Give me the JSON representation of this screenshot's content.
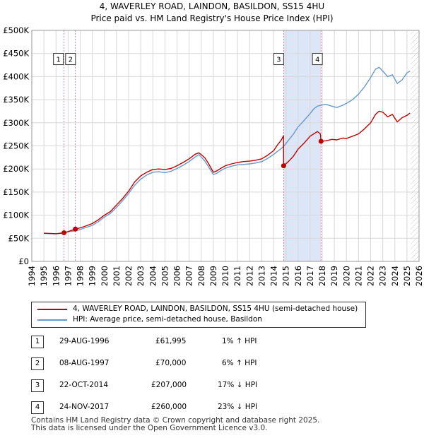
{
  "title": {
    "line1": "4, WAVERLEY ROAD, LAINDON, BASILDON, SS15 4HU",
    "line2": "Price paid vs. HM Land Registry's House Price Index (HPI)"
  },
  "colors": {
    "price_line": "#c00000",
    "hpi_line": "#6699cc",
    "shade": "#dde6f7",
    "grid": "#d8d8d8",
    "vline": "#e0607a"
  },
  "chart_data": {
    "type": "line",
    "title": "Price paid vs. HM Land Registry's House Price Index (HPI)",
    "xlabel": "",
    "ylabel": "",
    "xlim": [
      1994,
      2026
    ],
    "ylim": [
      0,
      500000
    ],
    "y_ticks": [
      0,
      50000,
      100000,
      150000,
      200000,
      250000,
      300000,
      350000,
      400000,
      450000,
      500000
    ],
    "y_tick_labels": [
      "£0",
      "£50K",
      "£100K",
      "£150K",
      "£200K",
      "£250K",
      "£300K",
      "£350K",
      "£400K",
      "£450K",
      "£500K"
    ],
    "x_ticks": [
      "1994",
      "1995",
      "1996",
      "1997",
      "1998",
      "1999",
      "2000",
      "2001",
      "2002",
      "2003",
      "2004",
      "2005",
      "2006",
      "2007",
      "2008",
      "2009",
      "2010",
      "2011",
      "2012",
      "2013",
      "2014",
      "2015",
      "2016",
      "2017",
      "2018",
      "2019",
      "2020",
      "2021",
      "2022",
      "2023",
      "2024",
      "2025",
      "2026"
    ],
    "grid": true,
    "shaded_range": [
      2014.81,
      2017.9
    ],
    "series": [
      {
        "name": "4, WAVERLEY ROAD, LAINDON, BASILDON, SS15 4HU (semi-detached house)",
        "x": [
          1995.0,
          1995.5,
          1996.0,
          1996.66,
          1997.0,
          1997.6,
          1998.0,
          1998.5,
          1999.0,
          1999.5,
          2000.0,
          2000.5,
          2001.0,
          2001.5,
          2002.0,
          2002.5,
          2003.0,
          2003.5,
          2004.0,
          2004.5,
          2005.0,
          2005.5,
          2006.0,
          2006.5,
          2007.0,
          2007.5,
          2007.8,
          2008.0,
          2008.3,
          2008.6,
          2009.0,
          2009.3,
          2009.6,
          2010.0,
          2010.5,
          2011.0,
          2011.5,
          2012.0,
          2012.5,
          2013.0,
          2013.5,
          2014.0,
          2014.3,
          2014.6,
          2014.8,
          2014.81,
          2015.2,
          2015.6,
          2016.0,
          2016.5,
          2017.0,
          2017.3,
          2017.6,
          2017.85,
          2017.9,
          2018.3,
          2018.8,
          2019.2,
          2019.7,
          2020.0,
          2020.5,
          2021.0,
          2021.5,
          2022.0,
          2022.4,
          2022.7,
          2023.0,
          2023.4,
          2023.8,
          2024.2,
          2024.6,
          2025.0,
          2025.25
        ],
        "values": [
          61000,
          60500,
          60000,
          61995,
          64500,
          70000,
          72500,
          77000,
          82000,
          90000,
          100000,
          108000,
          122000,
          136000,
          152000,
          172000,
          185000,
          193000,
          199000,
          200000,
          199000,
          201000,
          207000,
          214000,
          222000,
          232000,
          235000,
          231000,
          224000,
          212000,
          193000,
          196000,
          201000,
          207000,
          211000,
          214000,
          216000,
          217000,
          219000,
          222000,
          230000,
          240000,
          252000,
          262000,
          272000,
          207000,
          216000,
          227000,
          243000,
          256000,
          271000,
          276000,
          281000,
          276000,
          260000,
          261000,
          264000,
          263000,
          267000,
          266000,
          271000,
          276000,
          287000,
          300000,
          318000,
          325000,
          323000,
          313000,
          318000,
          302000,
          311000,
          316000,
          321000
        ],
        "color": "#c00000"
      },
      {
        "name": "HPI: Average price, semi-detached house, Basildon",
        "x": [
          1995.0,
          1995.5,
          1996.0,
          1996.66,
          1997.0,
          1997.6,
          1998.0,
          1998.5,
          1999.0,
          1999.5,
          2000.0,
          2000.5,
          2001.0,
          2001.5,
          2002.0,
          2002.5,
          2003.0,
          2003.5,
          2004.0,
          2004.5,
          2005.0,
          2005.5,
          2006.0,
          2006.5,
          2007.0,
          2007.5,
          2007.8,
          2008.0,
          2008.3,
          2008.6,
          2009.0,
          2009.3,
          2009.6,
          2010.0,
          2010.5,
          2011.0,
          2011.5,
          2012.0,
          2012.5,
          2013.0,
          2013.5,
          2014.0,
          2014.3,
          2014.6,
          2014.81,
          2015.2,
          2015.6,
          2016.0,
          2016.5,
          2017.0,
          2017.3,
          2017.6,
          2017.9,
          2018.3,
          2018.8,
          2019.2,
          2019.7,
          2020.0,
          2020.5,
          2021.0,
          2021.5,
          2022.0,
          2022.4,
          2022.7,
          2023.0,
          2023.4,
          2023.8,
          2024.2,
          2024.6,
          2025.0,
          2025.25
        ],
        "values": [
          60500,
          60000,
          59500,
          61300,
          64000,
          66000,
          69000,
          73500,
          78000,
          86000,
          96000,
          104000,
          117000,
          131000,
          147000,
          165000,
          178000,
          187000,
          193000,
          194000,
          192000,
          195000,
          201000,
          208000,
          216000,
          226000,
          231000,
          226000,
          217000,
          205000,
          188000,
          191000,
          196000,
          202000,
          206000,
          209000,
          210000,
          211000,
          213000,
          216000,
          223000,
          232000,
          238000,
          244000,
          249000,
          262000,
          275000,
          291000,
          305000,
          320000,
          330000,
          336000,
          338000,
          340000,
          336000,
          333000,
          338000,
          342000,
          350000,
          362000,
          378000,
          398000,
          416000,
          420000,
          412000,
          400000,
          404000,
          385000,
          393000,
          408000,
          412000
        ],
        "color": "#6699cc"
      }
    ],
    "markers": [
      {
        "label": "1",
        "x": 1996.66,
        "value": 61995
      },
      {
        "label": "2",
        "x": 1997.6,
        "value": 70000
      },
      {
        "label": "3",
        "x": 2014.81,
        "value": 207000
      },
      {
        "label": "4",
        "x": 2017.9,
        "value": 260000
      }
    ],
    "label_boxes": [
      {
        "label": "1",
        "x": 1996.2,
        "value": 438000
      },
      {
        "label": "2",
        "x": 1997.2,
        "value": 438000
      },
      {
        "label": "3",
        "x": 2014.4,
        "value": 438000
      },
      {
        "label": "4",
        "x": 2017.6,
        "value": 438000
      }
    ]
  },
  "legend": {
    "price_label": "4, WAVERLEY ROAD, LAINDON, BASILDON, SS15 4HU (semi-detached house)",
    "hpi_label": "HPI: Average price, semi-detached house, Basildon"
  },
  "sales": [
    {
      "num": "1",
      "date": "29-AUG-1996",
      "price": "£61,995",
      "hpi": "1% ↑ HPI"
    },
    {
      "num": "2",
      "date": "08-AUG-1997",
      "price": "£70,000",
      "hpi": "6% ↑ HPI"
    },
    {
      "num": "3",
      "date": "22-OCT-2014",
      "price": "£207,000",
      "hpi": "17% ↓ HPI"
    },
    {
      "num": "4",
      "date": "24-NOV-2017",
      "price": "£260,000",
      "hpi": "23% ↓ HPI"
    }
  ],
  "footer": {
    "line1": "Contains HM Land Registry data © Crown copyright and database right 2025.",
    "line2": "This data is licensed under the Open Government Licence v3.0."
  }
}
